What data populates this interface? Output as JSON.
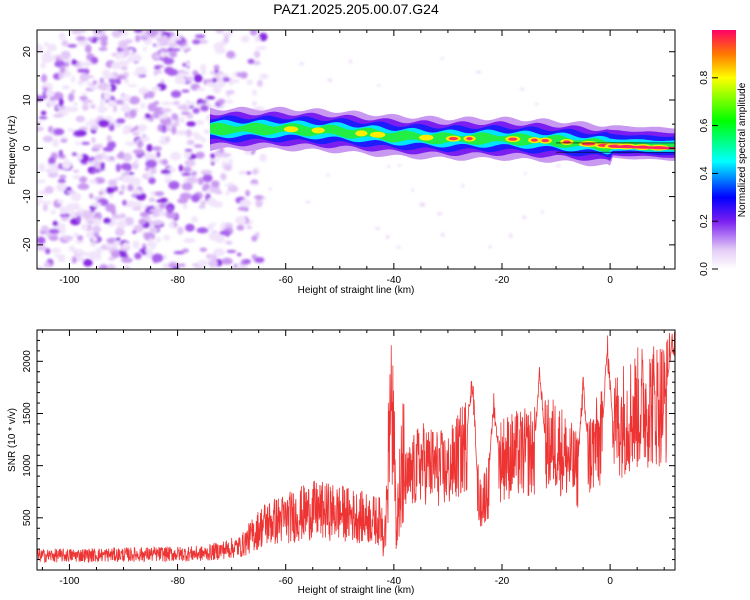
{
  "title": "PAZ1.2025.205.00.07.G24",
  "chart_data": [
    {
      "type": "heatmap",
      "xlabel": "Height of straight line (km)",
      "ylabel": "Frequency (Hz)",
      "xlim": [
        -106,
        12
      ],
      "ylim": [
        -25,
        24.5
      ],
      "xticks": [
        "-100",
        "-80",
        "-60",
        "-40",
        "-20",
        "0"
      ],
      "yticks": [
        "-20",
        "-10",
        "0",
        "10",
        "20"
      ],
      "colorbar": {
        "label": "Normalized spectral amplitude",
        "range": [
          0,
          1
        ],
        "ticks": [
          "0.0",
          "0.2",
          "0.4",
          "0.6",
          "0.8"
        ]
      },
      "signal_band": {
        "description_points": [
          {
            "x": -74,
            "y": 4.0
          },
          {
            "x": -60,
            "y": 4.0
          },
          {
            "x": -50,
            "y": 3.5
          },
          {
            "x": -40,
            "y": 2.5
          },
          {
            "x": -30,
            "y": 2.0
          },
          {
            "x": -20,
            "y": 2.0
          },
          {
            "x": -10,
            "y": 1.5
          },
          {
            "x": 0,
            "y": 0.5
          },
          {
            "x": 12,
            "y": 0.0
          }
        ],
        "noise_region_x": [
          -106,
          -68
        ]
      }
    },
    {
      "type": "line",
      "xlabel": "Height of straight line (km)",
      "ylabel": "SNR (10 * v/v)",
      "xlim": [
        -106,
        12
      ],
      "ylim": [
        0,
        2300
      ],
      "xticks": [
        "-100",
        "-80",
        "-60",
        "-40",
        "-20",
        "0"
      ],
      "yticks": [
        "500",
        "1000",
        "1500",
        "2000"
      ],
      "color": "#ee3333",
      "envelope": [
        {
          "x": -106,
          "y": 130
        },
        {
          "x": -90,
          "y": 140
        },
        {
          "x": -75,
          "y": 150
        },
        {
          "x": -68,
          "y": 220
        },
        {
          "x": -64,
          "y": 400
        },
        {
          "x": -60,
          "y": 450
        },
        {
          "x": -55,
          "y": 520
        },
        {
          "x": -50,
          "y": 500
        },
        {
          "x": -45,
          "y": 450
        },
        {
          "x": -42,
          "y": 420
        },
        {
          "x": -38,
          "y": 900
        },
        {
          "x": -35,
          "y": 1150
        },
        {
          "x": -30,
          "y": 1050
        },
        {
          "x": -26,
          "y": 1400
        },
        {
          "x": -24,
          "y": 700
        },
        {
          "x": -20,
          "y": 1200
        },
        {
          "x": -15,
          "y": 1250
        },
        {
          "x": -10,
          "y": 1350
        },
        {
          "x": -6,
          "y": 1050
        },
        {
          "x": -3,
          "y": 1300
        },
        {
          "x": 2,
          "y": 1600
        },
        {
          "x": 6,
          "y": 1750
        },
        {
          "x": 10,
          "y": 1800
        },
        {
          "x": 12,
          "y": 1900
        }
      ],
      "peaks": [
        {
          "x": -40.5,
          "y": 1750
        },
        {
          "x": -25.5,
          "y": 1950
        },
        {
          "x": -21.5,
          "y": 1750
        },
        {
          "x": -13,
          "y": 2000
        },
        {
          "x": -5,
          "y": 1900
        },
        {
          "x": -0.5,
          "y": 2290
        },
        {
          "x": 11.5,
          "y": 2250
        }
      ]
    }
  ]
}
